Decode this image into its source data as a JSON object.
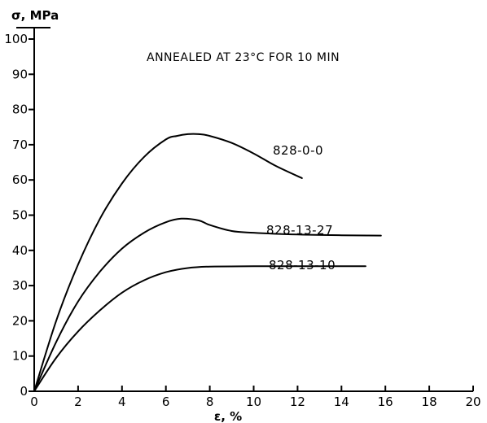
{
  "chart_data": {
    "type": "line",
    "title": "ANNEALED AT 23°C FOR 10 MIN",
    "xlabel": "ε, %",
    "ylabel": "σ, MPa",
    "xlim": [
      0,
      20
    ],
    "ylim": [
      0,
      100
    ],
    "x_ticks": [
      0,
      2,
      4,
      6,
      8,
      10,
      12,
      14,
      16,
      18,
      20
    ],
    "y_ticks": [
      0,
      10,
      20,
      30,
      40,
      50,
      60,
      70,
      80,
      90,
      100
    ],
    "grid": false,
    "legend": "none",
    "series": [
      {
        "name": "828-0-0",
        "x": [
          0,
          1,
          2,
          3,
          4,
          5,
          6,
          6.5,
          7,
          7.5,
          8,
          9,
          10,
          11,
          12.2
        ],
        "y": [
          0,
          20,
          36,
          49,
          59,
          66.5,
          71.5,
          72.5,
          73,
          73,
          72.5,
          70.5,
          67.5,
          64,
          60.5
        ]
      },
      {
        "name": "828-13-27",
        "x": [
          0,
          1,
          2,
          3,
          4,
          5,
          6,
          6.7,
          7.5,
          8,
          9,
          10,
          12,
          14,
          15.8
        ],
        "y": [
          0,
          14,
          25.5,
          34,
          40.5,
          45,
          48,
          49,
          48.5,
          47.2,
          45.5,
          45,
          44.5,
          44.3,
          44.2
        ]
      },
      {
        "name": "828-13-10",
        "x": [
          0,
          1,
          2,
          3,
          4,
          5,
          6,
          7,
          8,
          10,
          12,
          15.1
        ],
        "y": [
          0,
          9.5,
          17,
          23,
          28,
          31.5,
          33.8,
          35,
          35.4,
          35.5,
          35.5,
          35.5
        ]
      }
    ]
  }
}
